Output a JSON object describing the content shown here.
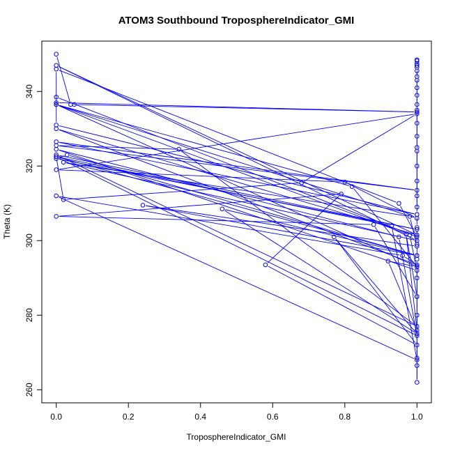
{
  "chart_data": {
    "type": "scatter",
    "title": "ATOM3 Southbound TroposphereIndicator_GMI",
    "xlabel": "TroposphereIndicator_GMI",
    "ylabel": "Theta (K)",
    "xlim": [
      -0.04,
      1.04
    ],
    "ylim": [
      256.5,
      353.5
    ],
    "xticks": [
      0.0,
      0.2,
      0.4,
      0.6,
      0.8,
      1.0
    ],
    "xtick_labels": [
      "0.0",
      "0.2",
      "0.4",
      "0.6",
      "0.8",
      "1.0"
    ],
    "yticks": [
      260,
      280,
      300,
      320,
      340
    ],
    "ytick_labels": [
      "260",
      "280",
      "300",
      "320",
      "340"
    ],
    "grid": false,
    "color": "#0000ff",
    "series": [
      {
        "x": [
          0.0,
          0.04,
          0.05,
          1.0,
          0.0,
          0.0,
          0.95,
          1.0,
          0.0,
          0.0,
          1.0,
          0.0,
          1.0,
          0.0,
          0.34,
          1.0,
          0.0,
          1.0,
          0.0,
          0.03,
          1.0,
          0.0,
          0.02,
          0.68,
          1.0,
          0.0,
          0.8,
          1.0,
          0.0,
          0.82,
          1.0,
          0.0,
          0.98,
          1.0,
          0.0,
          0.95,
          1.0,
          0.0,
          0.93,
          1.0,
          0.0,
          0.96,
          1.0,
          0.0,
          1.0,
          0.0,
          1.0,
          0.02,
          0.98,
          1.0,
          0.24,
          1.0,
          0.46,
          1.0,
          0.77,
          1.0,
          0.58,
          0.79,
          0.0,
          0.88,
          1.0,
          0.97,
          1.0,
          0.92,
          1.0,
          1.0,
          1.0,
          1.0,
          1.0,
          1.0,
          1.0,
          1.0,
          1.0,
          1.0,
          1.0,
          1.0,
          1.0,
          1.0,
          1.0,
          1.0,
          1.0,
          1.0,
          1.0,
          1.0,
          1.0,
          1.0,
          1.0,
          1.0,
          1.0,
          1.0,
          1.0,
          1.0,
          1.0,
          1.0,
          1.0
        ],
        "y": [
          350,
          336.5,
          336.5,
          334.5,
          337,
          346,
          310,
          301,
          338.5,
          331,
          307,
          326.5,
          313.5,
          325.5,
          324.5,
          277,
          323,
          303,
          322,
          323,
          296,
          322.5,
          311,
          315.5,
          334,
          319,
          315.7,
          306,
          336.5,
          314.5,
          293,
          336.5,
          301.5,
          292,
          324.5,
          301,
          274.5,
          322.5,
          304,
          268,
          312,
          296,
          293.5,
          330,
          301.5,
          347,
          300,
          321,
          306.5,
          298.5,
          309.5,
          296,
          308.5,
          275,
          301,
          272,
          293.5,
          312.5,
          306.5,
          304.3,
          285,
          301.7,
          276,
          294.5,
          293,
          262,
          266.5,
          268.5,
          280,
          285,
          290,
          295,
          299,
          303.5,
          307,
          312,
          316,
          320,
          324,
          328,
          331.5,
          335,
          339,
          343,
          346.5,
          348.5,
          348.2,
          347.5,
          347,
          345.5,
          344,
          341,
          336.5,
          325,
          309
        ]
      }
    ]
  }
}
